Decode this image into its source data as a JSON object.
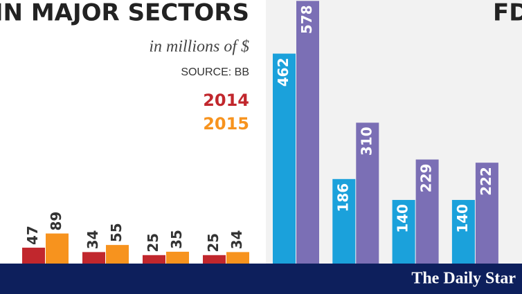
{
  "chart_data": [
    {
      "type": "bar",
      "title": "IN MAJOR SECTORS",
      "subtitle": "in millions of $",
      "source": "SOURCE: BB",
      "ylim": [
        0,
        780
      ],
      "series": [
        {
          "name": "2014",
          "color": "#c1272d",
          "values": [
            47,
            34,
            25,
            25
          ]
        },
        {
          "name": "2015",
          "color": "#f7931e",
          "values": [
            89,
            55,
            35,
            34
          ]
        }
      ]
    },
    {
      "type": "bar",
      "title": "FD",
      "ylim": [
        0,
        580
      ],
      "series": [
        {
          "color": "#1ba1db",
          "values": [
            462,
            186,
            140,
            140
          ]
        },
        {
          "color": "#7b6fb5",
          "values": [
            578,
            310,
            229,
            222
          ]
        }
      ]
    }
  ],
  "footer": {
    "logo": "The Daily Star"
  }
}
